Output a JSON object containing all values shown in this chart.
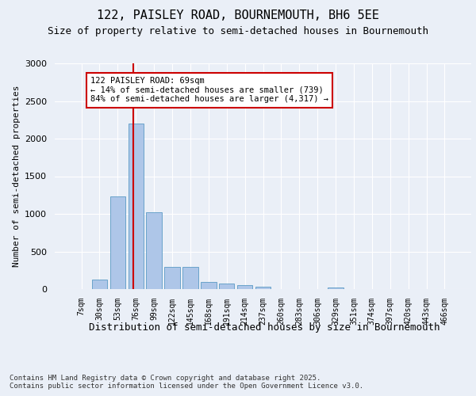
{
  "title1": "122, PAISLEY ROAD, BOURNEMOUTH, BH6 5EE",
  "title2": "Size of property relative to semi-detached houses in Bournemouth",
  "xlabel": "Distribution of semi-detached houses by size in Bournemouth",
  "ylabel": "Number of semi-detached properties",
  "categories": [
    "7sqm",
    "30sqm",
    "53sqm",
    "76sqm",
    "99sqm",
    "122sqm",
    "145sqm",
    "168sqm",
    "191sqm",
    "214sqm",
    "237sqm",
    "260sqm",
    "283sqm",
    "306sqm",
    "329sqm",
    "351sqm",
    "374sqm",
    "397sqm",
    "420sqm",
    "443sqm",
    "466sqm"
  ],
  "values": [
    5,
    130,
    1230,
    2200,
    1020,
    300,
    295,
    100,
    75,
    55,
    30,
    0,
    0,
    0,
    25,
    0,
    0,
    0,
    0,
    0,
    0
  ],
  "bar_color": "#aec6e8",
  "bar_edge_color": "#5a9ac5",
  "vline_color": "#cc0000",
  "vline_pos": 2.85,
  "annotation_text": "122 PAISLEY ROAD: 69sqm\n← 14% of semi-detached houses are smaller (739)\n84% of semi-detached houses are larger (4,317) →",
  "annotation_box_color": "#ffffff",
  "annotation_box_edge_color": "#cc0000",
  "ylim": [
    0,
    3000
  ],
  "yticks": [
    0,
    500,
    1000,
    1500,
    2000,
    2500,
    3000
  ],
  "bg_color": "#eaeff7",
  "footer_text": "Contains HM Land Registry data © Crown copyright and database right 2025.\nContains public sector information licensed under the Open Government Licence v3.0.",
  "title_fontsize": 11,
  "subtitle_fontsize": 9,
  "annotation_fontsize": 7.5,
  "ylabel_fontsize": 8,
  "xlabel_fontsize": 9,
  "footer_fontsize": 6.5,
  "tick_fontsize": 7
}
